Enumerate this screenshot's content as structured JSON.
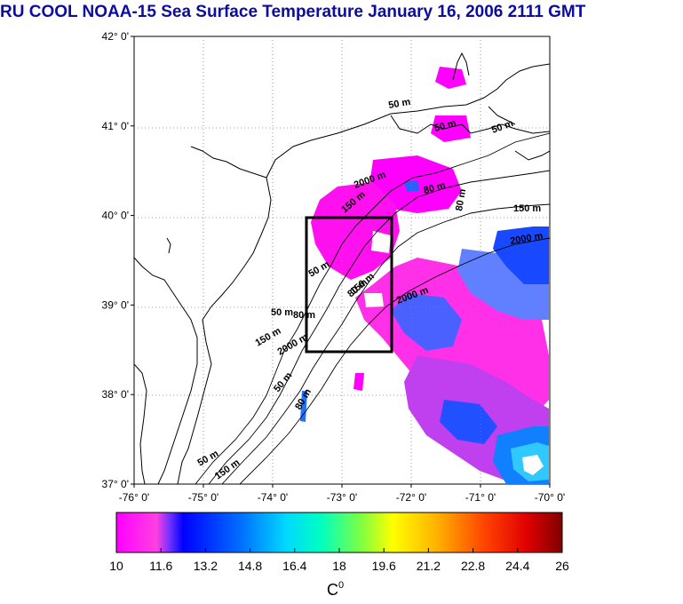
{
  "title": "RU COOL  NOAA-15 Sea Surface Temperature January 16, 2006 2111 GMT",
  "map": {
    "lat_ticks": [
      "42° 0'",
      "41° 0'",
      "40° 0'",
      "39° 0'",
      "38° 0'",
      "37° 0'"
    ],
    "lon_ticks": [
      "-76° 0'",
      "-75° 0'",
      "-74° 0'",
      "-73° 0'",
      "-72° 0'",
      "-71° 0'",
      "-70° 0'"
    ],
    "lat_range": [
      37,
      42
    ],
    "lon_range": [
      -76,
      -70
    ],
    "contour_labels": [
      "50 m",
      "50 m",
      "50 m",
      "80 m",
      "80 m",
      "150 m",
      "2000 m",
      "50 m",
      "80 m",
      "150 m",
      "2000 m",
      "50 m",
      "80 m",
      "150 m",
      "2000 m",
      "50 m",
      "80 m",
      "150 m",
      "2000 m",
      "50 m",
      "150 m"
    ],
    "box": {
      "lon_min": -73.45,
      "lon_max": -72.45,
      "lat_min": 38.5,
      "lat_max": 40.0
    },
    "grid": true
  },
  "colorbar": {
    "ticks": [
      "10",
      "11.6",
      "13.2",
      "14.8",
      "16.4",
      "18",
      "19.6",
      "21.2",
      "22.8",
      "24.4",
      "26"
    ],
    "unit_base": "C",
    "unit_sup": "0",
    "range": [
      10,
      26
    ]
  }
}
